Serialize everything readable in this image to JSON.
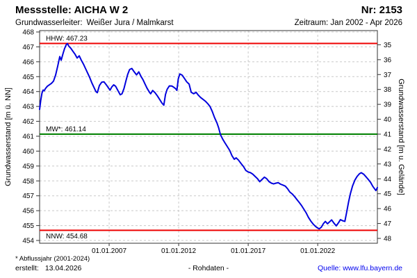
{
  "header": {
    "station_label": "Messstelle: AICHA W 2",
    "number_label": "Nr: 2153",
    "aquifer_label": "Grundwasserleiter:",
    "aquifer_value": "Weißer Jura / Malmkarst",
    "period_label": "Zeitraum: Jan 2002 - Apr 2026"
  },
  "footer": {
    "footnote": "* Abflussjahr (2001-2024)",
    "created_label": "erstellt:",
    "created_value": "13.04.2026",
    "center_label": "- Rohdaten -",
    "source_label": "Quelle: www.lfu.bayern.de",
    "source_color": "#0000ee"
  },
  "chart_data": {
    "type": "line",
    "title": "",
    "ylabel_left": "Grundwasserstand [m ü. NN]",
    "ylabel_right": "Grundwasserstand [m u. Gelände]",
    "x_range": [
      2002.0,
      2026.29
    ],
    "y_left": {
      "min": 454,
      "max": 468,
      "step": 1
    },
    "y_right": {
      "min": 35,
      "max": 48,
      "step": 1,
      "ground_level": 502.14
    },
    "x_ticks": [
      {
        "year": 2007,
        "label": "01.01.2007"
      },
      {
        "year": 2012,
        "label": "01.01.2012"
      },
      {
        "year": 2017,
        "label": "01.01.2017"
      },
      {
        "year": 2022,
        "label": "01.01.2022"
      }
    ],
    "grid": true,
    "grid_color": "#c8c8c8",
    "axis_color": "#333333",
    "reference_lines": [
      {
        "name": "HHW",
        "label": "HHW: 467.23",
        "value": 467.23,
        "color": "#ee0000",
        "label_position": "above"
      },
      {
        "name": "MW",
        "label": "MW*: 461.14",
        "value": 461.14,
        "color": "#008000",
        "label_position": "above"
      },
      {
        "name": "NNW",
        "label": "NNW: 454.68",
        "value": 454.68,
        "color": "#ee0000",
        "label_position": "below"
      }
    ],
    "series": [
      {
        "name": "Grundwasserstand Rohdaten",
        "color": "#0000dd",
        "x": [
          2002.0,
          2002.08,
          2002.17,
          2002.25,
          2002.33,
          2002.42,
          2002.55,
          2002.7,
          2002.85,
          2003.0,
          2003.15,
          2003.3,
          2003.45,
          2003.55,
          2003.7,
          2003.8,
          2003.92,
          2004.0,
          2004.1,
          2004.25,
          2004.4,
          2004.55,
          2004.7,
          2004.85,
          2005.0,
          2005.15,
          2005.3,
          2005.45,
          2005.6,
          2005.75,
          2005.9,
          2006.05,
          2006.15,
          2006.3,
          2006.47,
          2006.63,
          2006.8,
          2006.97,
          2007.07,
          2007.2,
          2007.33,
          2007.47,
          2007.63,
          2007.8,
          2007.93,
          2008.07,
          2008.2,
          2008.33,
          2008.47,
          2008.63,
          2008.8,
          2008.97,
          2009.13,
          2009.3,
          2009.43,
          2009.57,
          2009.72,
          2009.9,
          2009.98,
          2010.13,
          2010.3,
          2010.47,
          2010.63,
          2010.8,
          2010.93,
          2011.05,
          2011.17,
          2011.33,
          2011.5,
          2011.63,
          2011.77,
          2011.87,
          2011.97,
          2012.08,
          2012.25,
          2012.4,
          2012.58,
          2012.75,
          2012.9,
          2013.08,
          2013.25,
          2013.42,
          2013.58,
          2013.75,
          2013.92,
          2014.08,
          2014.25,
          2014.42,
          2014.58,
          2014.75,
          2014.88,
          2015.0,
          2015.17,
          2015.33,
          2015.5,
          2015.67,
          2015.83,
          2016.0,
          2016.13,
          2016.3,
          2016.5,
          2016.67,
          2016.83,
          2017.0,
          2017.17,
          2017.33,
          2017.5,
          2017.67,
          2017.83,
          2018.0,
          2018.17,
          2018.33,
          2018.5,
          2018.67,
          2018.83,
          2019.0,
          2019.17,
          2019.33,
          2019.5,
          2019.67,
          2019.83,
          2020.0,
          2020.17,
          2020.33,
          2020.5,
          2020.67,
          2020.83,
          2021.0,
          2021.17,
          2021.33,
          2021.5,
          2021.67,
          2021.83,
          2021.97,
          2022.1,
          2022.25,
          2022.42,
          2022.55,
          2022.7,
          2022.85,
          2023.0,
          2023.15,
          2023.33,
          2023.5,
          2023.63,
          2023.8,
          2023.95,
          2024.08,
          2024.22,
          2024.35,
          2024.5,
          2024.67,
          2024.83,
          2025.0,
          2025.13,
          2025.3,
          2025.47,
          2025.63,
          2025.8,
          2025.95,
          2026.08,
          2026.18,
          2026.29
        ],
        "y": [
          462.8,
          463.4,
          463.9,
          464.1,
          464.05,
          464.2,
          464.35,
          464.45,
          464.55,
          464.7,
          465.1,
          465.7,
          466.35,
          466.1,
          466.6,
          466.9,
          467.15,
          467.22,
          467.05,
          466.9,
          466.7,
          466.5,
          466.25,
          466.4,
          466.1,
          465.85,
          465.55,
          465.25,
          464.95,
          464.6,
          464.3,
          464.0,
          463.92,
          464.4,
          464.63,
          464.65,
          464.45,
          464.22,
          464.1,
          464.32,
          464.45,
          464.35,
          464.07,
          463.78,
          463.85,
          464.2,
          464.7,
          465.15,
          465.48,
          465.55,
          465.32,
          465.12,
          465.32,
          465.0,
          464.8,
          464.52,
          464.23,
          463.95,
          463.85,
          464.07,
          463.92,
          463.7,
          463.47,
          463.22,
          463.08,
          463.8,
          464.15,
          464.38,
          464.37,
          464.3,
          464.2,
          464.08,
          464.85,
          465.18,
          465.1,
          464.9,
          464.65,
          464.5,
          463.95,
          463.85,
          463.95,
          463.75,
          463.6,
          463.48,
          463.35,
          463.2,
          463.0,
          462.65,
          462.25,
          461.9,
          461.55,
          461.12,
          460.8,
          460.55,
          460.3,
          460.05,
          459.7,
          459.45,
          459.55,
          459.4,
          459.15,
          458.95,
          458.7,
          458.6,
          458.55,
          458.45,
          458.3,
          458.15,
          457.95,
          458.1,
          458.25,
          458.15,
          457.95,
          457.85,
          457.8,
          457.85,
          457.88,
          457.78,
          457.72,
          457.65,
          457.48,
          457.25,
          457.12,
          456.95,
          456.75,
          456.55,
          456.35,
          456.1,
          455.85,
          455.55,
          455.3,
          455.1,
          454.95,
          454.85,
          454.78,
          454.88,
          455.15,
          455.28,
          455.12,
          455.25,
          455.38,
          455.18,
          454.98,
          455.2,
          455.4,
          455.32,
          455.28,
          455.9,
          456.6,
          457.15,
          457.65,
          458.05,
          458.3,
          458.48,
          458.55,
          458.45,
          458.28,
          458.1,
          457.9,
          457.65,
          457.48,
          457.35,
          457.55
        ]
      }
    ]
  }
}
